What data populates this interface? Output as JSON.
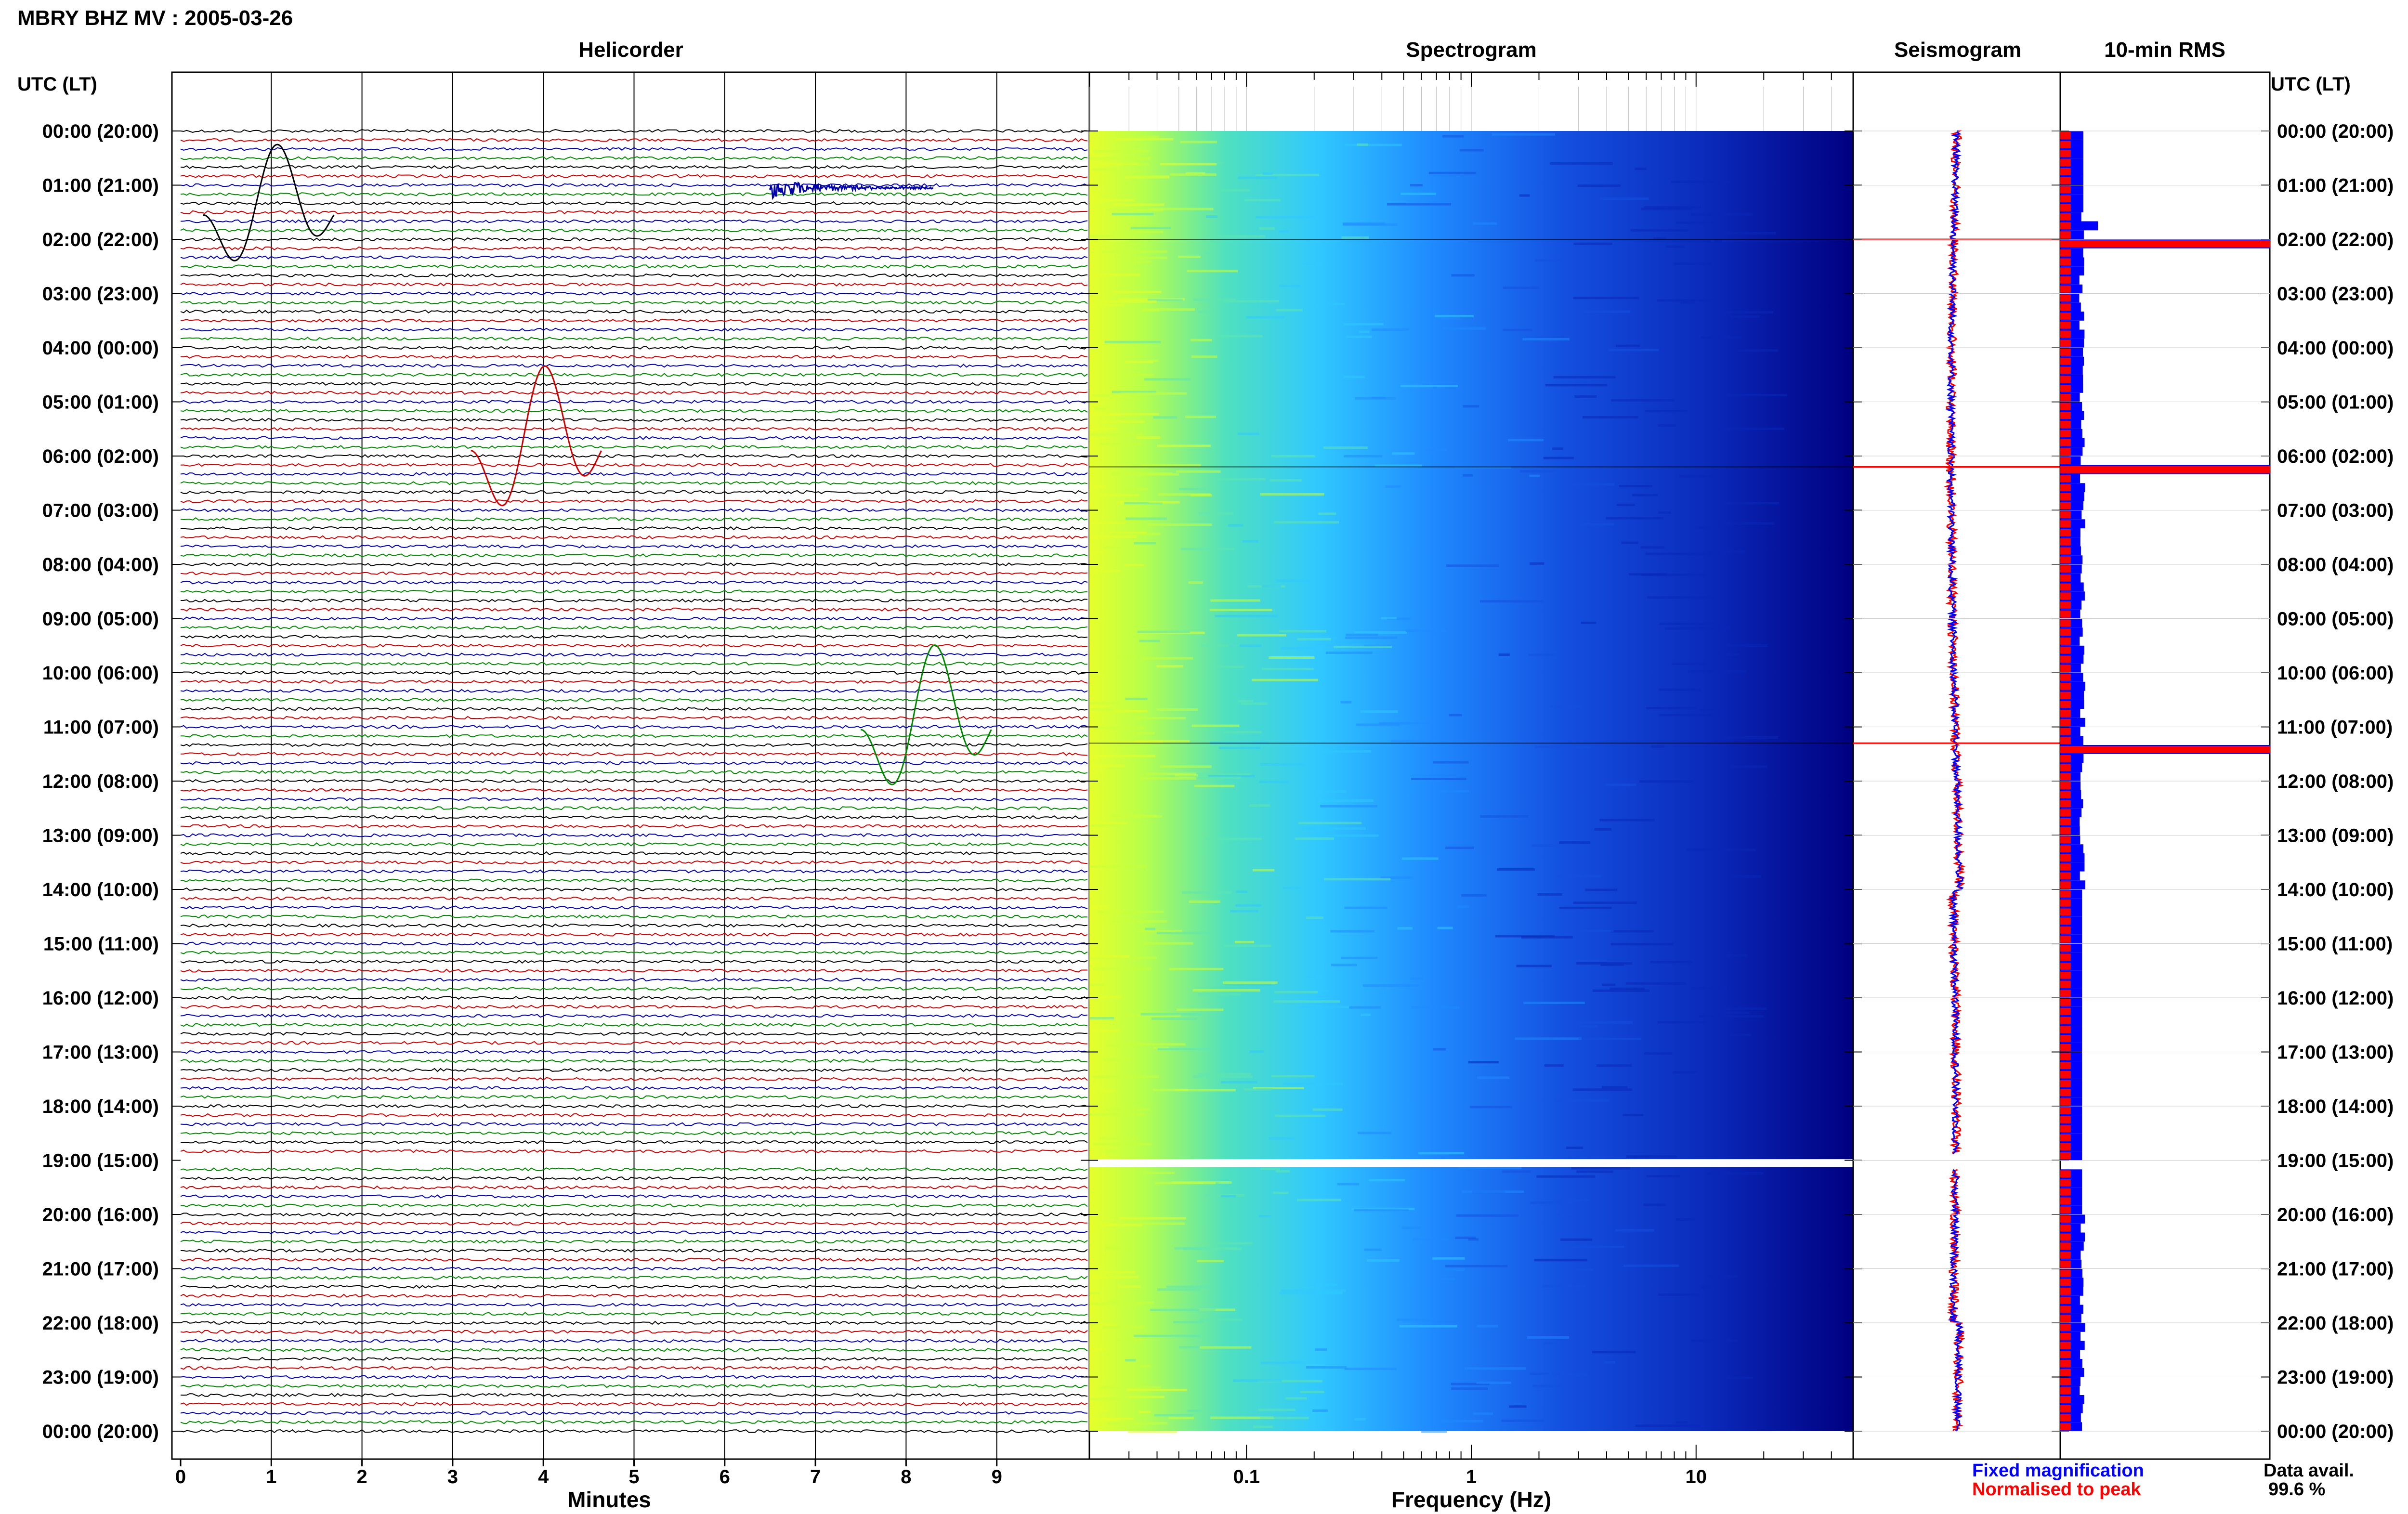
{
  "header": {
    "title": "MBRY BHZ MV : 2005-03-26",
    "left_axis_label": "UTC (LT)",
    "right_axis_label": "UTC (LT)"
  },
  "panels": {
    "helicorder": "Helicorder",
    "spectrogram": "Spectrogram",
    "seismogram": "Seismogram",
    "rms": "10-min RMS"
  },
  "footer": {
    "legend_fixed": "Fixed magnification",
    "legend_normalised": "Normalised to peak",
    "data_avail_label": "Data avail.",
    "data_avail_value": "99.6 %"
  },
  "colors": {
    "trace_cycle": [
      "#000000",
      "#cc0000",
      "#0000aa",
      "#008800"
    ],
    "fixed_magnification": "#0000ff",
    "normalised_to_peak": "#ff0000",
    "spectrogram_low": "#000080",
    "spectrogram_high": "#e6ff2a"
  },
  "chart_data": [
    {
      "type": "line",
      "name": "helicorder",
      "title": "Helicorder",
      "xlabel": "Minutes",
      "xlim": [
        0,
        10
      ],
      "x_ticks": [
        0,
        1,
        2,
        3,
        4,
        5,
        6,
        7,
        8,
        9
      ],
      "time_labels": [
        "00:00 (20:00)",
        "01:00 (21:00)",
        "02:00 (22:00)",
        "03:00 (23:00)",
        "04:00 (00:00)",
        "05:00 (01:00)",
        "06:00 (02:00)",
        "07:00 (03:00)",
        "08:00 (04:00)",
        "09:00 (05:00)",
        "10:00 (06:00)",
        "11:00 (07:00)",
        "12:00 (08:00)",
        "13:00 (09:00)",
        "14:00 (10:00)",
        "15:00 (11:00)",
        "16:00 (12:00)",
        "17:00 (13:00)",
        "18:00 (14:00)",
        "19:00 (15:00)",
        "20:00 (16:00)",
        "21:00 (17:00)",
        "22:00 (18:00)",
        "23:00 (19:00)",
        "00:00 (20:00)"
      ],
      "lines_per_hour": 6,
      "events": [
        {
          "hour": 1.55,
          "minute": 0.25
        },
        {
          "hour": 1.05,
          "minute": 6.5
        },
        {
          "hour": 5.9,
          "minute": 3.2
        },
        {
          "hour": 11.05,
          "minute": 7.5
        }
      ],
      "gap_hours": [
        19.05
      ]
    },
    {
      "type": "heatmap",
      "name": "spectrogram",
      "title": "Spectrogram",
      "xlabel": "Frequency (Hz)",
      "x_scale": "log",
      "xlim": [
        0.02,
        50
      ],
      "x_ticks": [
        0.1,
        1,
        10
      ],
      "x_tick_labels": [
        "0.1",
        "1",
        "10"
      ],
      "gap_hours": [
        19.05
      ],
      "bright_line_hours": [
        2.0,
        6.2,
        11.3
      ]
    },
    {
      "type": "line",
      "name": "seismogram",
      "title": "Seismogram",
      "series": [
        {
          "name": "Fixed magnification"
        },
        {
          "name": "Normalised to peak"
        }
      ],
      "spike_hours": [
        2.0,
        6.2,
        11.3
      ],
      "gap_hours": [
        19.05
      ]
    },
    {
      "type": "bar",
      "name": "rms",
      "title": "10-min RMS",
      "orientation": "horizontal",
      "bins_per_hour": 6,
      "xlim": [
        0,
        1
      ],
      "peaks": [
        {
          "hour": 1.5,
          "value": 0.08
        },
        {
          "hour": 1.67,
          "value": 0.18
        },
        {
          "hour": 2.0,
          "value": 1.0
        },
        {
          "hour": 6.2,
          "value": 1.0
        },
        {
          "hour": 11.3,
          "value": 1.0
        }
      ],
      "baseline": 0.2
    }
  ]
}
